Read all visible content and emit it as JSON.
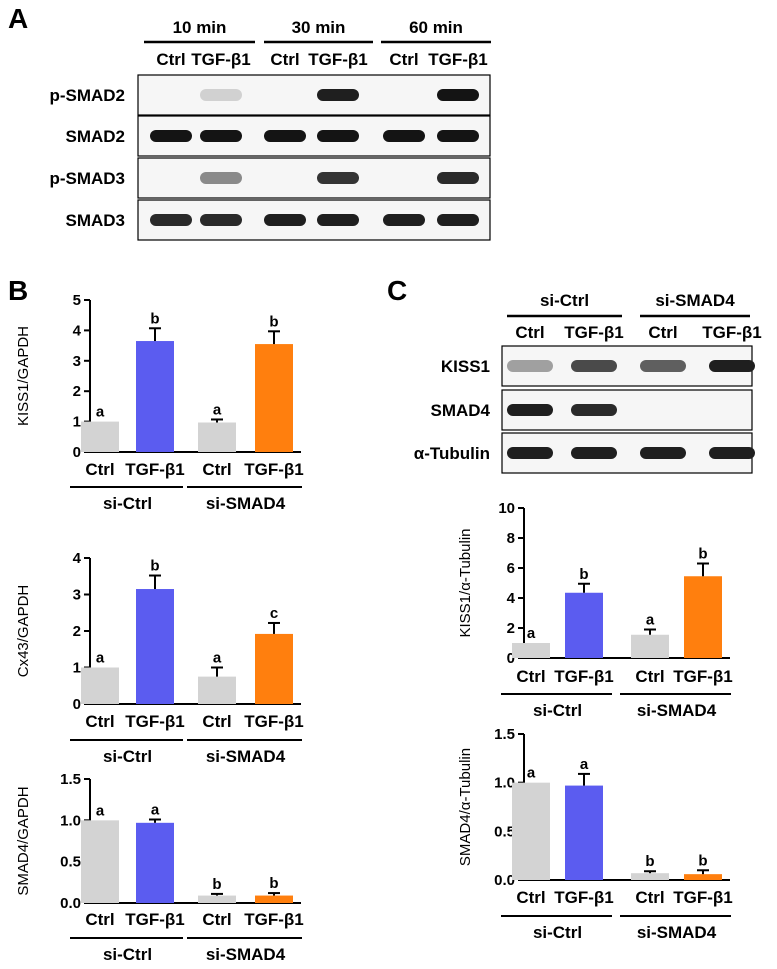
{
  "panel_labels": {
    "a": "A",
    "b": "B",
    "c": "C"
  },
  "blot_a": {
    "time_groups": [
      "10 min",
      "30 min",
      "60 min"
    ],
    "lane_labels": [
      "Ctrl",
      "TGF-β1",
      "Ctrl",
      "TGF-β1",
      "Ctrl",
      "TGF-β1"
    ],
    "rows": [
      {
        "label": "p-SMAD2",
        "intensity": [
          0.0,
          0.12,
          0.0,
          0.95,
          0.0,
          1.0
        ]
      },
      {
        "label": "SMAD2",
        "intensity": [
          1.0,
          1.0,
          1.0,
          1.0,
          1.0,
          1.0
        ]
      },
      {
        "label": "p-SMAD3",
        "intensity": [
          0.0,
          0.45,
          0.0,
          0.85,
          0.0,
          0.9
        ]
      },
      {
        "label": "SMAD3",
        "intensity": [
          0.9,
          0.9,
          0.95,
          0.95,
          0.95,
          0.95
        ]
      }
    ]
  },
  "blot_c": {
    "groups": [
      "si-Ctrl",
      "si-SMAD4"
    ],
    "lane_labels": [
      "Ctrl",
      "TGF-β1",
      "Ctrl",
      "TGF-β1"
    ],
    "rows": [
      {
        "label": "KISS1",
        "intensity": [
          0.35,
          0.75,
          0.65,
          0.95
        ]
      },
      {
        "label": "SMAD4",
        "intensity": [
          0.95,
          0.9,
          0.0,
          0.0
        ]
      },
      {
        "label": "α-Tubulin",
        "intensity": [
          0.95,
          0.95,
          0.95,
          0.95
        ]
      }
    ]
  },
  "colors": {
    "ctrl": "#d3d3d3",
    "tgf_si_ctrl": "#5b5cf0",
    "tgf_si_smad4": "#ff7f0e"
  },
  "chart_data": [
    {
      "type": "bar",
      "panel": "B",
      "ylabel": "KISS1/GAPDH",
      "ylim": [
        0,
        5
      ],
      "yticks": [
        "0",
        "1",
        "2",
        "3",
        "4",
        "5"
      ],
      "categories": [
        "Ctrl",
        "TGF-β1",
        "Ctrl",
        "TGF-β1"
      ],
      "groups": [
        "si-Ctrl",
        "si-SMAD4"
      ],
      "values": [
        1.0,
        3.65,
        0.97,
        3.55
      ],
      "errors": [
        0.0,
        0.42,
        0.1,
        0.42
      ],
      "letters": [
        "a",
        "b",
        "a",
        "b"
      ]
    },
    {
      "type": "bar",
      "panel": "B",
      "ylabel": "Cx43/GAPDH",
      "ylim": [
        0,
        4
      ],
      "yticks": [
        "0",
        "1",
        "2",
        "3",
        "4"
      ],
      "categories": [
        "Ctrl",
        "TGF-β1",
        "Ctrl",
        "TGF-β1"
      ],
      "groups": [
        "si-Ctrl",
        "si-SMAD4"
      ],
      "values": [
        1.0,
        3.15,
        0.75,
        1.92
      ],
      "errors": [
        0.0,
        0.37,
        0.25,
        0.3
      ],
      "letters": [
        "a",
        "b",
        "a",
        "c"
      ]
    },
    {
      "type": "bar",
      "panel": "B",
      "ylabel": "SMAD4/GAPDH",
      "ylim": [
        0,
        1.5
      ],
      "yticks": [
        "0.0",
        "0.5",
        "1.0",
        "1.5"
      ],
      "categories": [
        "Ctrl",
        "TGF-β1",
        "Ctrl",
        "TGF-β1"
      ],
      "groups": [
        "si-Ctrl",
        "si-SMAD4"
      ],
      "values": [
        1.0,
        0.97,
        0.09,
        0.09
      ],
      "errors": [
        0.0,
        0.04,
        0.02,
        0.03
      ],
      "letters": [
        "a",
        "a",
        "b",
        "b"
      ]
    },
    {
      "type": "bar",
      "panel": "C",
      "ylabel": "KISS1/α-Tubulin",
      "ylim": [
        0,
        10
      ],
      "yticks": [
        "0",
        "2",
        "4",
        "6",
        "8",
        "10"
      ],
      "categories": [
        "Ctrl",
        "TGF-β1",
        "Ctrl",
        "TGF-β1"
      ],
      "groups": [
        "si-Ctrl",
        "si-SMAD4"
      ],
      "values": [
        1.0,
        4.35,
        1.55,
        5.45
      ],
      "errors": [
        0.0,
        0.6,
        0.35,
        0.85
      ],
      "letters": [
        "a",
        "b",
        "a",
        "b"
      ]
    },
    {
      "type": "bar",
      "panel": "C",
      "ylabel": "SMAD4/α-Tubulin",
      "ylim": [
        0,
        1.5
      ],
      "yticks": [
        "0.0",
        "0.5",
        "1.0",
        "1.5"
      ],
      "categories": [
        "Ctrl",
        "TGF-β1",
        "Ctrl",
        "TGF-β1"
      ],
      "groups": [
        "si-Ctrl",
        "si-SMAD4"
      ],
      "values": [
        1.0,
        0.97,
        0.07,
        0.06
      ],
      "errors": [
        0.0,
        0.12,
        0.02,
        0.04
      ],
      "letters": [
        "a",
        "a",
        "b",
        "b"
      ]
    }
  ]
}
